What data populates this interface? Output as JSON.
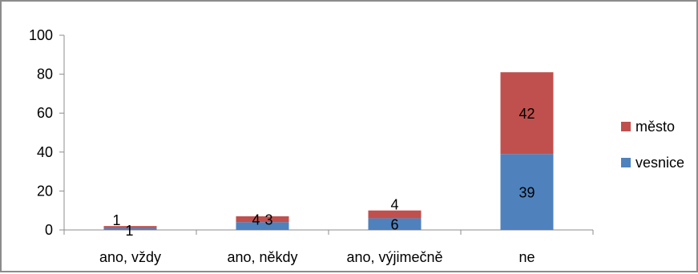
{
  "chart_data": {
    "type": "bar",
    "stacked": true,
    "categories": [
      "ano, vždy",
      "ano, někdy",
      "ano, výjimečně",
      "ne"
    ],
    "series": [
      {
        "name": "vesnice",
        "values": [
          1,
          4,
          6,
          39
        ],
        "color": "#4f81bd"
      },
      {
        "name": "město",
        "values": [
          1,
          3,
          4,
          42
        ],
        "color": "#c0504d"
      }
    ],
    "ylim": [
      0,
      100
    ],
    "yticks": [
      0,
      20,
      40,
      60,
      80,
      100
    ],
    "grid": false,
    "legend_position": "right"
  }
}
